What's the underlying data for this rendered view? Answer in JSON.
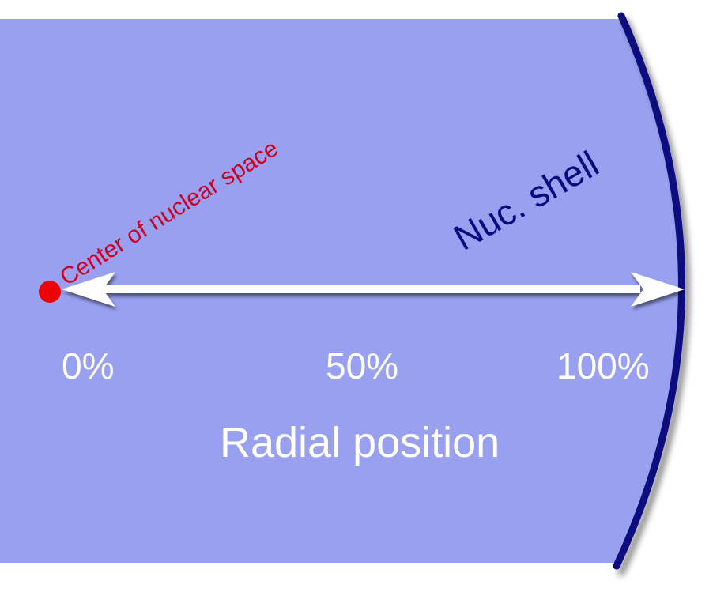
{
  "diagram": {
    "colors": {
      "background": "#ffffff",
      "nucleus_fill": "#99a0f0",
      "shell_stroke": "#0a0a80",
      "shell_label": "#0a0a80",
      "arrow": "#ffffff",
      "center_dot": "#ee0000",
      "center_label": "#cc0022",
      "tick_label": "#ffffff",
      "axis_label": "#ffffff"
    },
    "center_label": "Center of nuclear space",
    "shell_label": "Nuc. shell",
    "axis_label": "Radial position",
    "ticks": [
      {
        "label": "0%",
        "value": 0
      },
      {
        "label": "50%",
        "value": 50
      },
      {
        "label": "100%",
        "value": 100
      }
    ]
  }
}
